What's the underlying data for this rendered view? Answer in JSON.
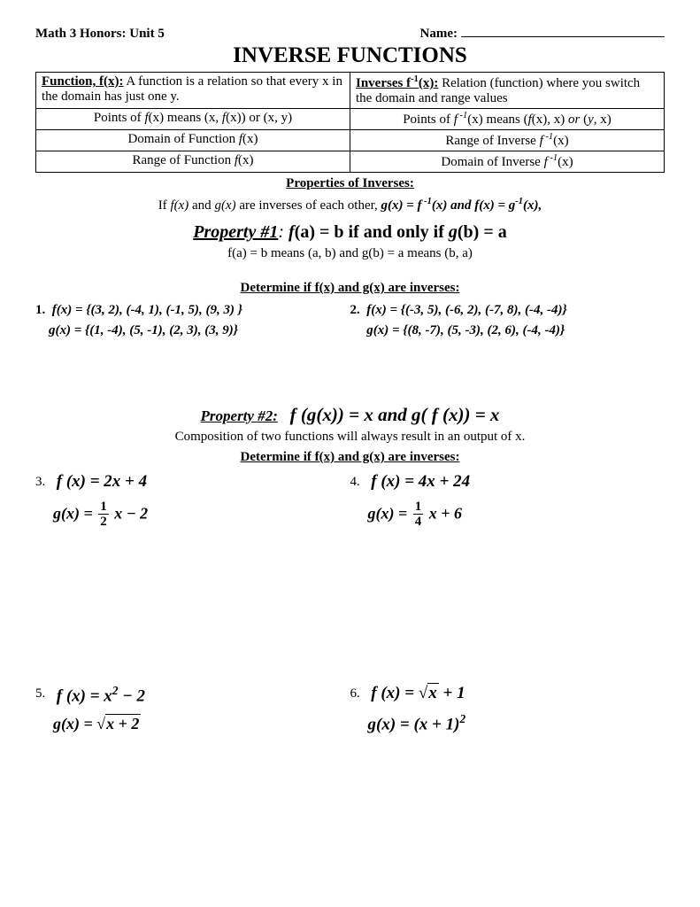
{
  "header": {
    "course": "Math 3 Honors: Unit 5",
    "name_label": "Name:"
  },
  "title": "INVERSE FUNCTIONS",
  "def_table": {
    "r1c1_label": "Function, f(x):",
    "r1c1_text": " A function is a relation so that every x in the domain has just one y.",
    "r1c2_label": "Inverses f",
    "r1c2_sup": "-1",
    "r1c2_label2": "(x):",
    "r1c2_text": "  Relation (function) where you switch the domain and range values",
    "r2c1": "Points of f(x) means  (x, f(x))  or (x, y)",
    "r2c2": "Points of f -1(x) means (f(x), x) or (y, x)",
    "r3c1": "Domain of Function f(x)",
    "r3c2": "Range of Inverse f -1(x)",
    "r4c1": "Range of Function f(x)",
    "r4c2": "Domain of Inverse f -1(x)"
  },
  "props_heading": "Properties of Inverses:",
  "inverse_statement_pre": "If f(x) and g(x) are inverses of each other,  ",
  "inverse_statement_eq": "g(x) = f -1(x)  and f(x) = g-1(x),",
  "prop1": {
    "lead": "Property #1",
    "text": ": f(a) = b if and only if g(b) = a"
  },
  "prop1_sub": "f(a) = b means (a, b)  and g(b) = a means (b, a)",
  "determine": "Determine if f(x) and g(x) are inverses:",
  "p1": {
    "num": "1.",
    "f": "f(x) = {(3, 2), (-4, 1), (-1, 5), (9, 3) }",
    "g": "g(x) = {(1, -4), (5, -1), (2, 3), (3, 9)}"
  },
  "p2": {
    "num": "2.",
    "f": "f(x) = {(-3, 5), (-6, 2), (-7, 8), (-4, -4)}",
    "g": "g(x) = {(8, -7), (5, -3), (2, 6), (-4, -4)}"
  },
  "prop2": {
    "lead": "Property #2:",
    "eq": "f (g(x)) = x  and  g( f (x)) = x"
  },
  "comp_text": "Composition of two functions will always result in an output of x.",
  "p3": {
    "num": "3.",
    "f": "f (x) = 2x + 4"
  },
  "p4": {
    "num": "4.",
    "f": "f (x) = 4x + 24"
  },
  "p5": {
    "num": "5."
  },
  "p6": {
    "num": "6."
  }
}
